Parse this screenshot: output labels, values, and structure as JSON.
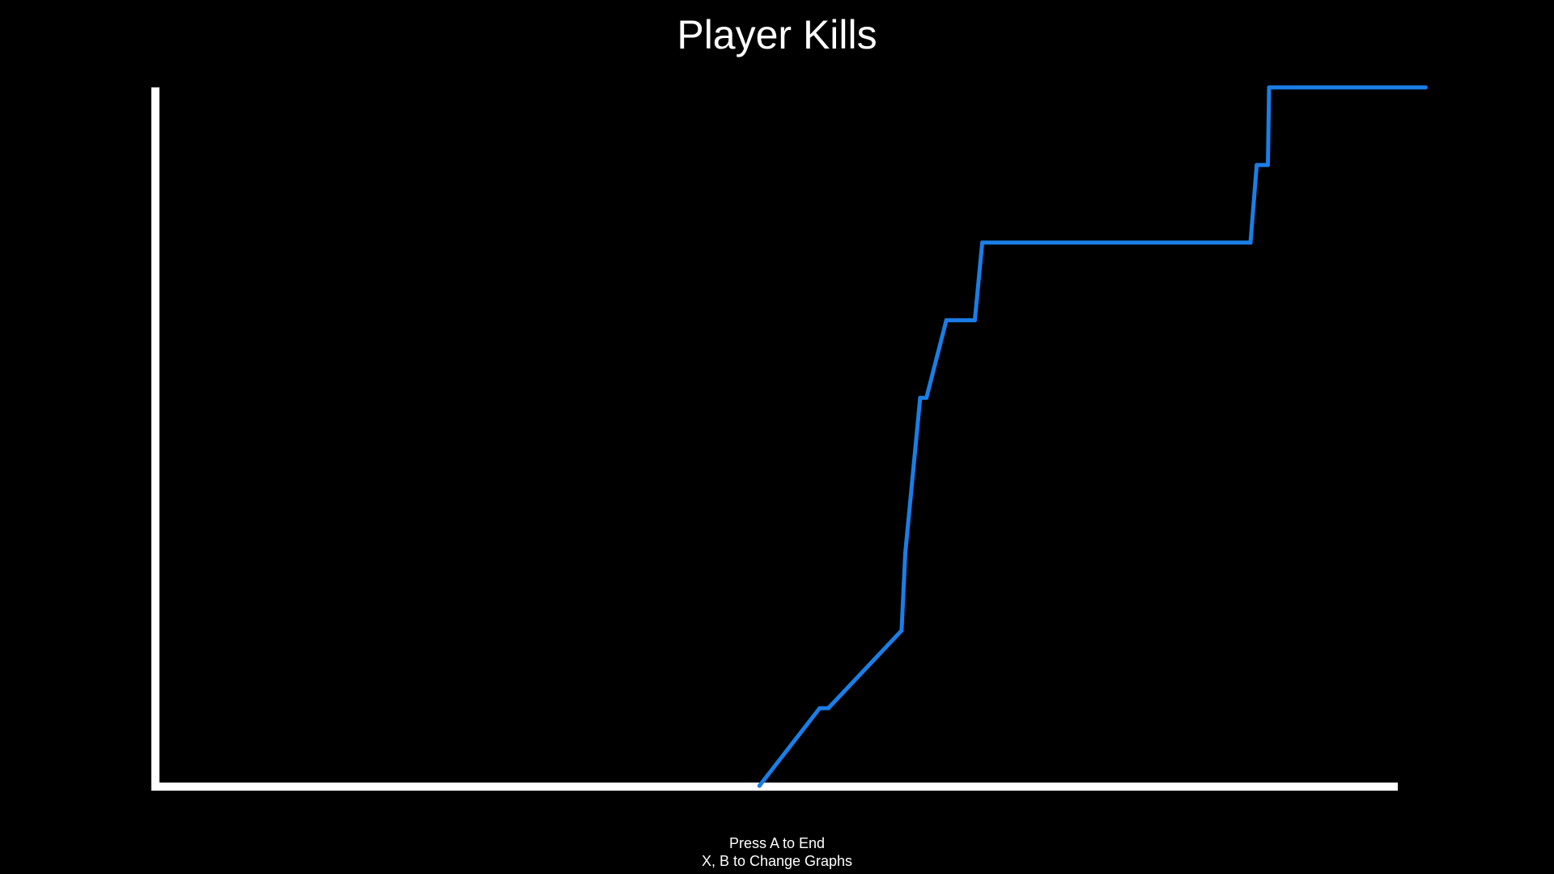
{
  "chart_data": {
    "type": "line",
    "title": "Player Kills",
    "xlabel": "",
    "ylabel": "",
    "xlim": [
      0,
      100
    ],
    "ylim": [
      0,
      9
    ],
    "grid": false,
    "series": [
      {
        "points": [
          [
            48.65,
            0
          ],
          [
            53.5,
            1
          ],
          [
            54.2,
            1
          ],
          [
            60.1,
            2
          ],
          [
            60.4,
            3
          ],
          [
            61.6,
            5
          ],
          [
            62.1,
            5
          ],
          [
            63.7,
            6
          ],
          [
            66.0,
            6
          ],
          [
            66.6,
            7
          ],
          [
            88.2,
            7
          ],
          [
            88.7,
            8
          ],
          [
            89.6,
            8
          ],
          [
            89.7,
            9
          ],
          [
            102.3,
            9
          ]
        ]
      }
    ]
  },
  "colors": {
    "background": "#000000",
    "axis": "#ffffff",
    "series": "#1a7ee6",
    "text": "#ffffff"
  },
  "footer": {
    "line1": "Press A to End",
    "line2": "X, B to Change Graphs"
  }
}
